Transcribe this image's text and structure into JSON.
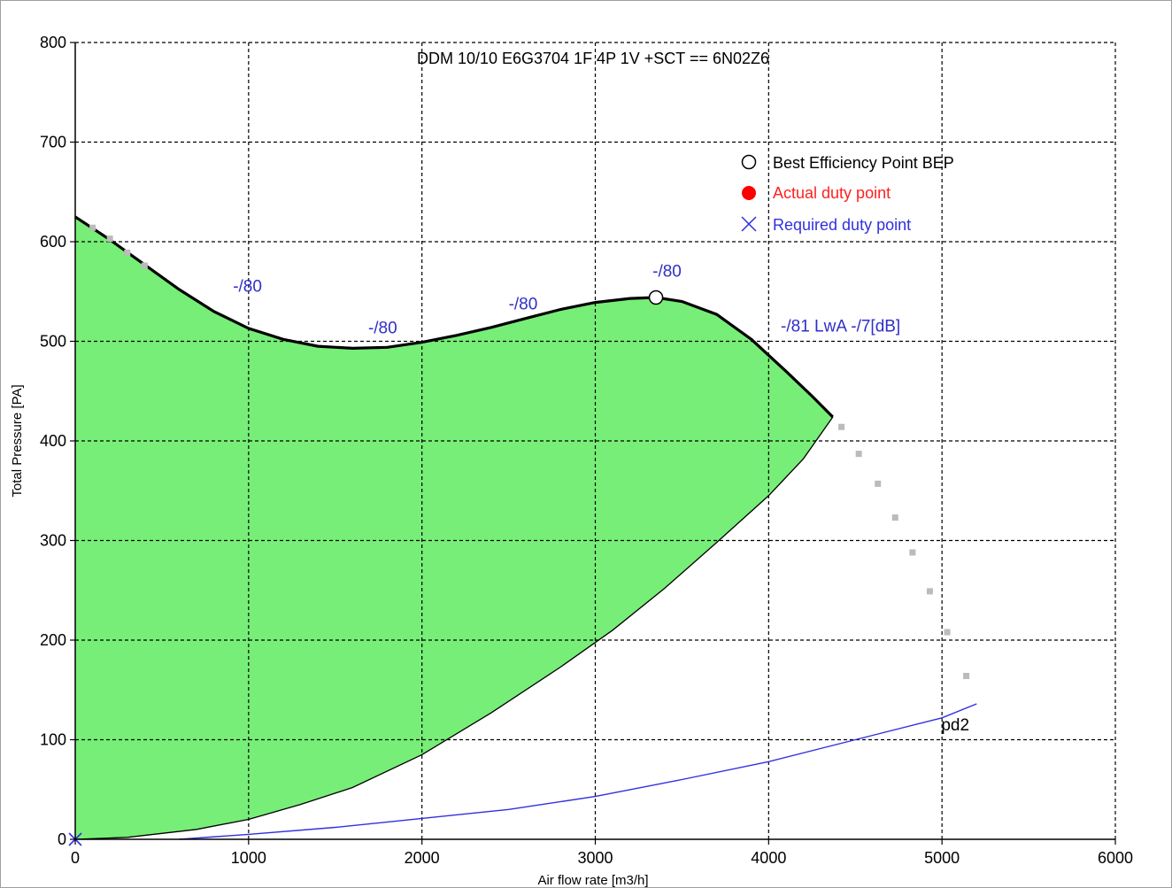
{
  "chart_data": {
    "type": "line",
    "title": "DDM 10/10 E6G3704 1F 4P 1V +SCT == 6N02Z6",
    "xlabel": "Air flow rate [m3/h]",
    "ylabel": "Total Pressure [PA]",
    "xlim": [
      0,
      6000
    ],
    "ylim": [
      0,
      800
    ],
    "x_ticks": [
      0,
      1000,
      2000,
      3000,
      4000,
      5000,
      6000
    ],
    "y_ticks": [
      0,
      100,
      200,
      300,
      400,
      500,
      600,
      700,
      800
    ],
    "grid": true,
    "legend_placement": "top-right",
    "legend": [
      {
        "label": "Best Efficiency Point BEP",
        "marker": "open-circle",
        "color": "#000000"
      },
      {
        "label": "Actual duty point",
        "marker": "filled-circle",
        "color": "#ff0000"
      },
      {
        "label": "Required duty point",
        "marker": "cross",
        "color": "#3030e0"
      }
    ],
    "fan_curve": {
      "color": "#000000",
      "points": [
        [
          0,
          625
        ],
        [
          200,
          602
        ],
        [
          400,
          577
        ],
        [
          600,
          552
        ],
        [
          800,
          530
        ],
        [
          1000,
          513
        ],
        [
          1200,
          502
        ],
        [
          1400,
          495
        ],
        [
          1600,
          493
        ],
        [
          1800,
          494
        ],
        [
          2000,
          499
        ],
        [
          2200,
          506
        ],
        [
          2400,
          514
        ],
        [
          2600,
          523
        ],
        [
          2800,
          532
        ],
        [
          3000,
          539
        ],
        [
          3200,
          543
        ],
        [
          3350,
          544
        ],
        [
          3500,
          540
        ],
        [
          3700,
          527
        ],
        [
          3900,
          502
        ],
        [
          4100,
          470
        ],
        [
          4250,
          445
        ],
        [
          4370,
          424
        ]
      ]
    },
    "operating_area": {
      "color": "#77ee77",
      "lower_bound": [
        [
          0,
          0
        ],
        [
          300,
          2
        ],
        [
          700,
          10
        ],
        [
          1000,
          20
        ],
        [
          1300,
          35
        ],
        [
          1600,
          52
        ],
        [
          2000,
          85
        ],
        [
          2400,
          127
        ],
        [
          2800,
          173
        ],
        [
          3100,
          210
        ],
        [
          3400,
          252
        ],
        [
          3700,
          298
        ],
        [
          4000,
          345
        ],
        [
          4200,
          382
        ],
        [
          4370,
          424
        ]
      ]
    },
    "extension_dots": {
      "color": "#bbbbbb",
      "points": [
        [
          100,
          614
        ],
        [
          200,
          603
        ],
        [
          300,
          589
        ],
        [
          400,
          576
        ],
        [
          4420,
          414
        ],
        [
          4520,
          387
        ],
        [
          4630,
          357
        ],
        [
          4730,
          323
        ],
        [
          4830,
          288
        ],
        [
          4930,
          249
        ],
        [
          5030,
          208
        ],
        [
          5140,
          164
        ]
      ]
    },
    "system_curve": {
      "label": "pd2",
      "color": "#3030e0",
      "points": [
        [
          600,
          0
        ],
        [
          1000,
          5
        ],
        [
          1500,
          12
        ],
        [
          2000,
          21
        ],
        [
          2500,
          30
        ],
        [
          3000,
          43
        ],
        [
          3500,
          60
        ],
        [
          4000,
          78
        ],
        [
          4500,
          100
        ],
        [
          5000,
          122
        ],
        [
          5200,
          136
        ]
      ]
    },
    "bep": {
      "x": 3350,
      "y": 544
    },
    "required_duty_point": {
      "x": 0,
      "y": 0
    },
    "annotations": [
      {
        "text": "-/80",
        "x": 910,
        "y": 550
      },
      {
        "text": "-/80",
        "x": 1690,
        "y": 508
      },
      {
        "text": "-/80",
        "x": 2500,
        "y": 532
      },
      {
        "text": "-/80",
        "x": 3330,
        "y": 565
      },
      {
        "text": "-/81 LwA -/7[dB]",
        "x": 4070,
        "y": 510
      }
    ]
  }
}
